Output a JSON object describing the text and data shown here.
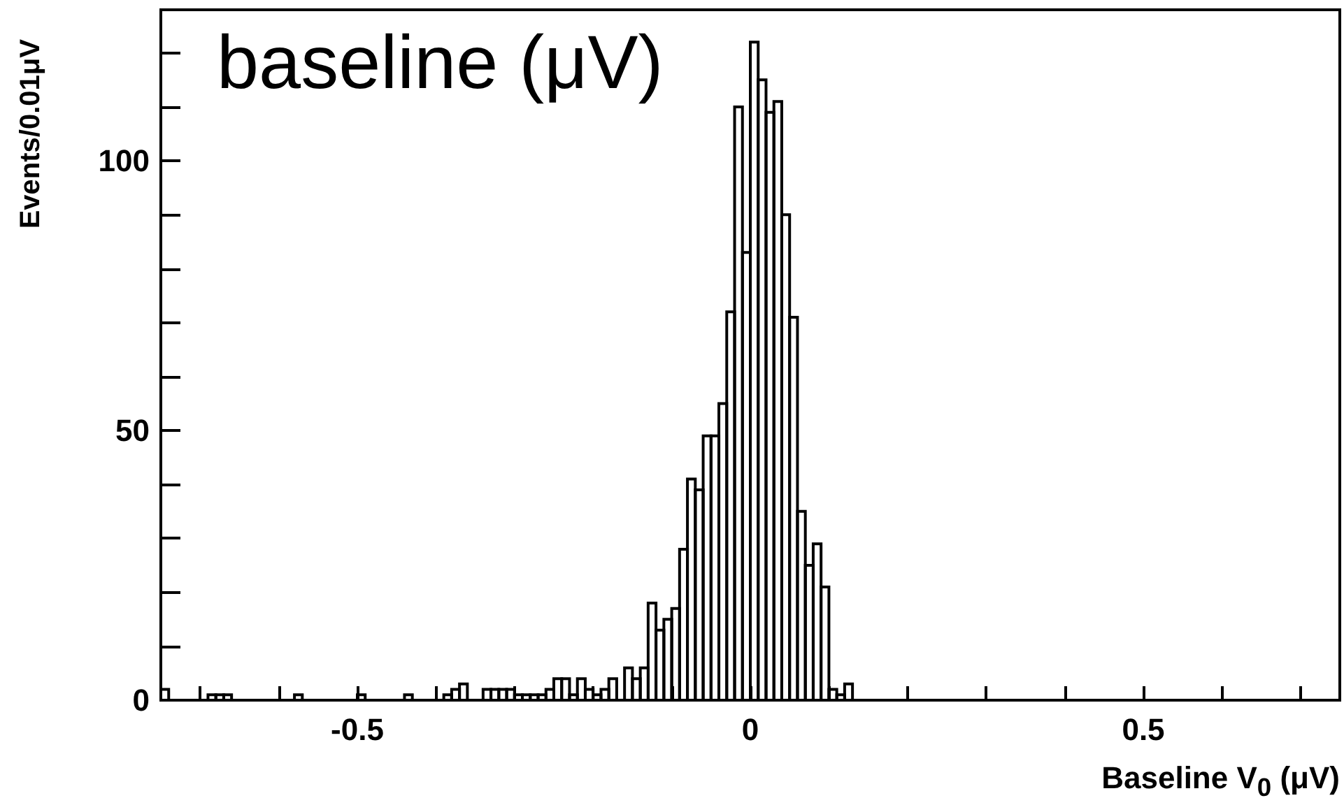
{
  "chart_data": {
    "type": "histogram",
    "xlabel": "Baseline V$_{0}$ (μV)",
    "ylabel": "Events/0.01μV",
    "annotations": [
      "baseline (μV)"
    ],
    "bins": [
      -0.75,
      -0.74,
      -0.73,
      -0.72,
      -0.71,
      -0.7,
      -0.69,
      -0.68,
      -0.67,
      -0.66,
      -0.65,
      -0.64,
      -0.63,
      -0.62,
      -0.61,
      -0.6,
      -0.59,
      -0.58,
      -0.57,
      -0.56,
      -0.55,
      -0.54,
      -0.53,
      -0.52,
      -0.51,
      -0.5,
      -0.49,
      -0.48,
      -0.47,
      -0.46,
      -0.45,
      -0.44,
      -0.43,
      -0.42,
      -0.41,
      -0.4,
      -0.39,
      -0.38,
      -0.37,
      -0.36,
      -0.35,
      -0.34,
      -0.33,
      -0.32,
      -0.31,
      -0.3,
      -0.29,
      -0.28,
      -0.27,
      -0.26,
      -0.25,
      -0.24,
      -0.23,
      -0.22,
      -0.21,
      -0.2,
      -0.19,
      -0.18,
      -0.17,
      -0.16,
      -0.15,
      -0.14,
      -0.13,
      -0.12,
      -0.11,
      -0.1,
      -0.09,
      -0.08,
      -0.07,
      -0.06,
      -0.05,
      -0.04,
      -0.03,
      -0.02,
      -0.01,
      0,
      0.01,
      0.02,
      0.03,
      0.04,
      0.05,
      0.06,
      0.07,
      0.08,
      0.09,
      0.1,
      0.11,
      0.12,
      0.13,
      0.14,
      0.15,
      0.16,
      0.17,
      0.18,
      0.19,
      0.2,
      0.21,
      0.22,
      0.23,
      0.24,
      0.25,
      0.26,
      0.27,
      0.28,
      0.29,
      0.3,
      0.31,
      0.32,
      0.33,
      0.34,
      0.35,
      0.36,
      0.37,
      0.38,
      0.39,
      0.4,
      0.41,
      0.42,
      0.43,
      0.44,
      0.45,
      0.46,
      0.47,
      0.48,
      0.49,
      0.5,
      0.51,
      0.52,
      0.53,
      0.54,
      0.55,
      0.56,
      0.57,
      0.58,
      0.59,
      0.6,
      0.61,
      0.62,
      0.63,
      0.64,
      0.65,
      0.66,
      0.67,
      0.68,
      0.69,
      0.7,
      0.71,
      0.72,
      0.73,
      0.74,
      0.75
    ],
    "values": [
      2,
      0,
      0,
      0,
      0,
      0,
      1,
      1,
      1,
      0,
      0,
      0,
      0,
      0,
      0,
      0,
      0,
      1,
      0,
      0,
      0,
      0,
      0,
      0,
      0,
      1,
      0,
      0,
      0,
      0,
      0,
      1,
      0,
      0,
      0,
      0,
      1,
      2,
      3,
      0,
      0,
      2,
      2,
      2,
      2,
      1,
      1,
      1,
      1,
      2,
      4,
      4,
      1,
      4,
      2,
      1,
      2,
      4,
      0,
      6,
      4,
      6,
      18,
      13,
      15,
      17,
      28,
      41,
      39,
      49,
      49,
      55,
      72,
      110,
      83,
      122,
      115,
      109,
      111,
      90,
      71,
      35,
      25,
      29,
      21,
      2,
      1,
      3,
      0,
      0,
      0,
      0,
      0,
      0,
      0,
      0,
      0,
      0,
      0,
      0,
      0,
      0,
      0,
      0,
      0,
      0,
      0,
      0,
      0,
      0,
      0,
      0,
      0,
      0,
      0,
      0,
      0,
      0,
      0,
      0,
      0,
      0,
      0,
      0,
      0,
      0,
      0,
      0,
      0,
      0,
      0,
      0,
      0,
      0,
      0,
      0,
      0,
      0,
      0,
      0,
      0,
      0,
      0,
      0,
      0,
      0,
      0,
      0,
      0,
      0
    ],
    "color": "#000000",
    "xlim": [
      -0.75,
      0.75
    ],
    "xticks": [
      {
        "value": -0.7,
        "label": null
      },
      {
        "value": -0.6,
        "label": null
      },
      -0.5,
      {
        "value": -0.4,
        "label": null
      },
      {
        "value": -0.3,
        "label": null
      },
      {
        "value": -0.2,
        "label": null
      },
      {
        "value": -0.1,
        "label": null
      },
      0,
      {
        "value": 0.1,
        "label": null
      },
      {
        "value": 0.2,
        "label": null
      },
      {
        "value": 0.3,
        "label": null
      },
      {
        "value": 0.4,
        "label": null
      },
      0.5,
      {
        "value": 0.6,
        "label": null
      },
      {
        "value": 0.7,
        "label": null
      }
    ],
    "ylim": [
      0,
      128
    ],
    "yticks": [
      0,
      {
        "value": 10,
        "label": null
      },
      {
        "value": 20,
        "label": null
      },
      {
        "value": 30,
        "label": null
      },
      {
        "value": 40,
        "label": null
      },
      50,
      {
        "value": 60,
        "label": null
      },
      {
        "value": 70,
        "label": null
      },
      {
        "value": 80,
        "label": null
      },
      {
        "value": 90,
        "label": null
      },
      100,
      {
        "value": 110,
        "label": null
      },
      {
        "value": 120,
        "label": null
      }
    ],
    "grid": false
  }
}
